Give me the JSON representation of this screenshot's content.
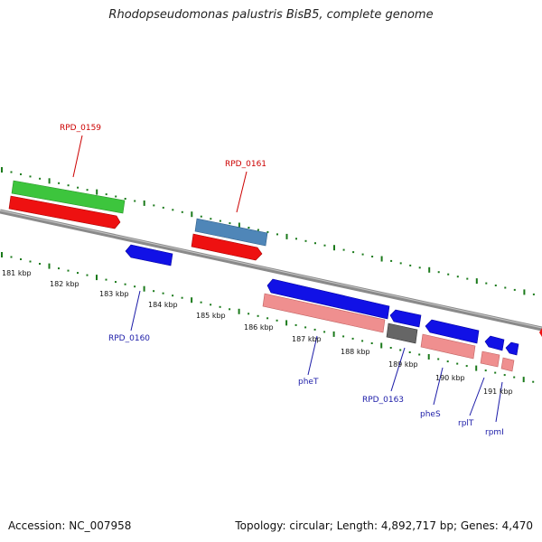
{
  "title": "Rhodopseudomonas palustris BisB5, complete genome",
  "footer": {
    "accession": "Accession: NC_007958",
    "stats": "Topology: circular; Length: 4,892,717 bp; Genes: 4,470"
  },
  "colors": {
    "backbone": "#7a7a7a",
    "tick": "#1b7a1b",
    "label_top": "#cc0000",
    "label_bottom": "#1c1ca8",
    "gene_green": "#3dc53d",
    "gene_red": "#ee1111",
    "gene_steel": "#4f86b8",
    "gene_blue": "#1111e6",
    "gene_pink": "#ef8f8f",
    "gene_gray": "#666666"
  },
  "kbp_labels": [
    "181 kbp",
    "182 kbp",
    "183 kbp",
    "184 kbp",
    "185 kbp",
    "186 kbp",
    "187 kbp",
    "188 kbp",
    "189 kbp",
    "190 kbp",
    "191 kbp"
  ],
  "top_labels": [
    "RPD_0159",
    "RPD_0161"
  ],
  "bottom_labels": [
    "RPD_0160",
    "pheT",
    "RPD_0163",
    "pheS",
    "rplT",
    "rpmI"
  ]
}
